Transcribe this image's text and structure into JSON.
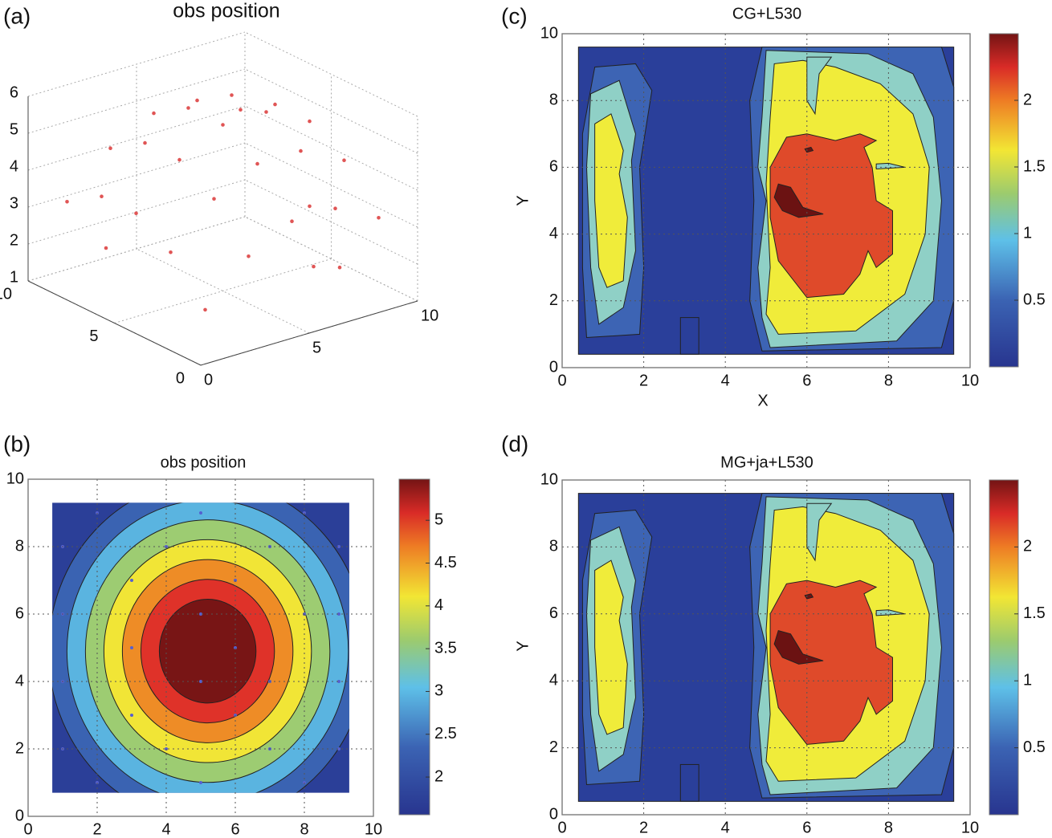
{
  "chart_data": [
    {
      "type": "scatter3d",
      "panel_label": "(a)",
      "title": "obs position",
      "x": [
        1,
        1,
        1,
        1,
        1,
        3,
        3,
        3,
        3,
        3,
        5,
        5,
        5,
        5,
        5,
        7,
        7,
        7,
        7,
        7,
        9,
        9,
        9,
        9,
        9,
        8,
        2,
        6,
        9
      ],
      "y": [
        1,
        3,
        5,
        7,
        9,
        1,
        3,
        5,
        7,
        9,
        1,
        3,
        5,
        7,
        9,
        1,
        3,
        5,
        7,
        9,
        1,
        3,
        5,
        7,
        9,
        2,
        8,
        1,
        5
      ],
      "z": [
        2.1,
        3.2,
        3.8,
        3.8,
        3.2,
        3.2,
        4.3,
        4.9,
        4.9,
        4.3,
        3.8,
        4.9,
        5.5,
        5.5,
        4.9,
        3.8,
        4.9,
        5.5,
        5.5,
        4.9,
        3.2,
        4.3,
        4.9,
        4.9,
        4.3,
        1.8,
        2.0,
        2.4,
        2.6
      ],
      "color": "#e05555",
      "xlim": [
        0,
        10
      ],
      "ylim": [
        0,
        10
      ],
      "zlim": [
        1,
        6
      ],
      "xticks": [
        0,
        5,
        10
      ],
      "yticks": [
        0,
        5,
        10
      ],
      "zticks": [
        1,
        2,
        3,
        4,
        5,
        6
      ],
      "grid": true
    },
    {
      "type": "contour",
      "panel_label": "(b)",
      "title": "obs position",
      "xlim": [
        0,
        10
      ],
      "ylim": [
        0,
        10
      ],
      "xticks": [
        0,
        2,
        4,
        6,
        8,
        10
      ],
      "yticks": [
        0,
        2,
        4,
        6,
        8,
        10
      ],
      "grid": true,
      "levels": [
        1.5,
        2,
        2.5,
        3,
        3.5,
        4,
        4.5,
        5
      ],
      "colors": [
        "#2b3f98",
        "#3a63b2",
        "#5ab4e0",
        "#9dcc72",
        "#f1e536",
        "#ee8c26",
        "#df3229",
        "#781515"
      ],
      "points": {
        "x": [
          1,
          1,
          1,
          1,
          2,
          2,
          3,
          3,
          3,
          4,
          4,
          5,
          5,
          5,
          5,
          6,
          6,
          6,
          7,
          7,
          7,
          8,
          8,
          8,
          9,
          9,
          9,
          9
        ],
        "y": [
          2,
          4,
          6,
          8,
          1,
          9,
          3,
          5,
          7,
          2,
          8,
          1,
          4,
          6,
          9,
          3,
          5,
          7,
          2,
          4,
          8,
          1,
          6,
          9,
          2,
          4,
          6,
          8
        ],
        "color": "#5560d0"
      },
      "colorbar": {
        "lim": [
          1.56,
          5.48
        ],
        "ticks": [
          2,
          2.5,
          3,
          3.5,
          4,
          4.5,
          5
        ]
      }
    },
    {
      "type": "contour",
      "panel_label": "(c)",
      "title": "CG+L530",
      "xlabel": "X",
      "ylabel": "Y",
      "xlim": [
        0,
        10
      ],
      "ylim": [
        0,
        10
      ],
      "xticks": [
        0,
        2,
        4,
        6,
        8,
        10
      ],
      "yticks": [
        0,
        2,
        4,
        6,
        8,
        10
      ],
      "grid": true,
      "levels": [
        0,
        0.5,
        1,
        1.5,
        2,
        2.3
      ],
      "colors": [
        "#2a3f9a",
        "#3d64b4",
        "#8fd0c6",
        "#f0ec3a",
        "#df4a2a",
        "#6b1212"
      ],
      "colorbar": {
        "lim": [
          0,
          2.5
        ],
        "ticks": [
          0.5,
          1,
          1.5,
          2
        ]
      }
    },
    {
      "type": "contour",
      "panel_label": "(d)",
      "title": "MG+ja+L530",
      "ylabel": "Y",
      "xlim": [
        0,
        10
      ],
      "ylim": [
        0,
        10
      ],
      "xticks": [
        0,
        2,
        4,
        6,
        8,
        10
      ],
      "yticks": [
        0,
        2,
        4,
        6,
        8,
        10
      ],
      "grid": true,
      "levels": [
        0,
        0.5,
        1,
        1.5,
        2,
        2.3
      ],
      "colors": [
        "#2a3f9a",
        "#3d64b4",
        "#8fd0c6",
        "#f0ec3a",
        "#df4a2a",
        "#6b1212"
      ],
      "colorbar": {
        "lim": [
          0,
          2.5
        ],
        "ticks": [
          0.5,
          1,
          1.5,
          2
        ]
      }
    }
  ]
}
